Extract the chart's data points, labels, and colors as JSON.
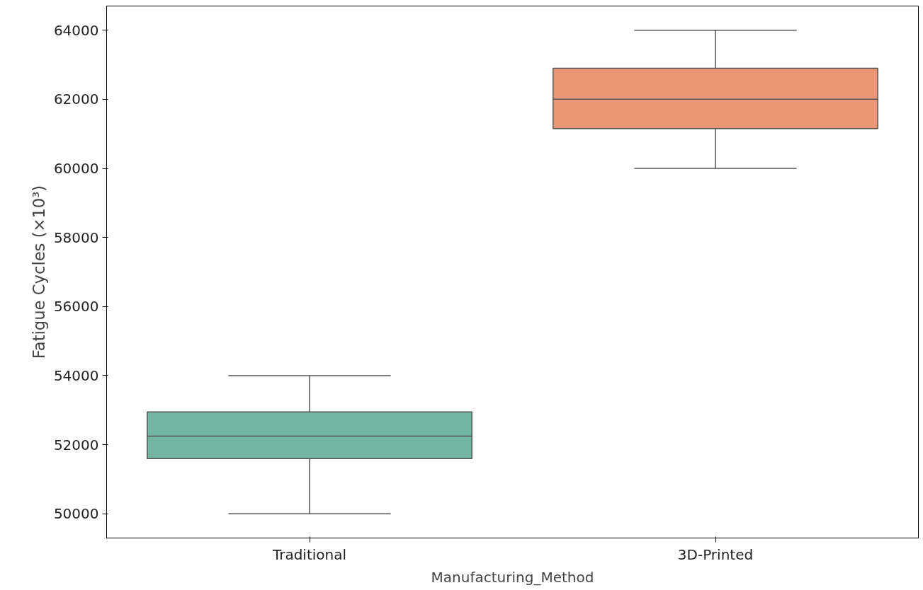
{
  "chart_data": {
    "type": "box",
    "xlabel": "Manufacturing_Method",
    "ylabel": "Fatigue Cycles (×10³)",
    "categories": [
      "Traditional",
      "3D-Printed"
    ],
    "colors": [
      "#72b6a1",
      "#e99675"
    ],
    "boxes": [
      {
        "low": 50000,
        "q1": 51600,
        "median": 52250,
        "q3": 52950,
        "high": 54000
      },
      {
        "low": 60000,
        "q1": 61150,
        "median": 62000,
        "q3": 62900,
        "high": 64000
      }
    ],
    "ylim": [
      49300,
      64700
    ],
    "yticks": [
      50000,
      52000,
      54000,
      56000,
      58000,
      60000,
      62000,
      64000
    ],
    "grid": false
  }
}
